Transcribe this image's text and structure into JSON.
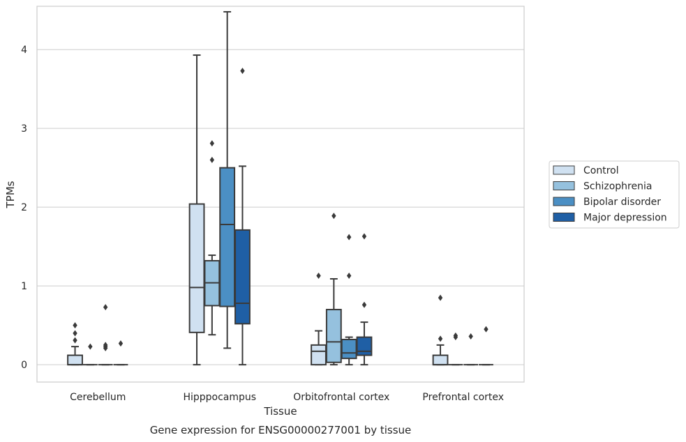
{
  "chart_data": {
    "type": "box",
    "xlabel": "Tissue",
    "ylabel": "TPMs",
    "caption": "Gene expression for ENSG00000277001 by tissue",
    "ylim": [
      -0.22,
      4.55
    ],
    "yticks": [
      0,
      1,
      2,
      3,
      4
    ],
    "grid": true,
    "legend_position": "right",
    "categories": [
      "Cerebellum",
      "Hipppocampus",
      "Orbitofrontal cortex",
      "Prefrontal cortex"
    ],
    "series": [
      {
        "name": "Control",
        "color": "#d0e1f1",
        "boxes": [
          {
            "whislo": 0,
            "q1": 0,
            "med": 0,
            "q3": 0.12,
            "whishi": 0.23,
            "fliers": [
              0.31,
              0.4,
              0.5
            ]
          },
          {
            "whislo": 0,
            "q1": 0.41,
            "med": 0.98,
            "q3": 2.04,
            "whishi": 3.93,
            "fliers": []
          },
          {
            "whislo": 0,
            "q1": 0,
            "med": 0.17,
            "q3": 0.25,
            "whishi": 0.43,
            "fliers": [
              1.13
            ]
          },
          {
            "whislo": 0,
            "q1": 0,
            "med": 0,
            "q3": 0.12,
            "whishi": 0.25,
            "fliers": [
              0.33,
              0.85
            ]
          }
        ]
      },
      {
        "name": "Schizophrenia",
        "color": "#95c1de",
        "boxes": [
          {
            "whislo": 0,
            "q1": 0,
            "med": 0,
            "q3": 0,
            "whishi": 0,
            "fliers": [
              0.23
            ]
          },
          {
            "whislo": 0.38,
            "q1": 0.75,
            "med": 1.04,
            "q3": 1.32,
            "whishi": 1.39,
            "fliers": [
              2.6,
              2.81
            ]
          },
          {
            "whislo": 0,
            "q1": 0.03,
            "med": 0.29,
            "q3": 0.7,
            "whishi": 1.09,
            "fliers": [
              1.89
            ]
          },
          {
            "whislo": 0,
            "q1": 0,
            "med": 0,
            "q3": 0,
            "whishi": 0,
            "fliers": [
              0.35,
              0.37
            ]
          }
        ]
      },
      {
        "name": "Bipolar disorder",
        "color": "#4b8fc4",
        "boxes": [
          {
            "whislo": 0,
            "q1": 0,
            "med": 0,
            "q3": 0,
            "whishi": 0,
            "fliers": [
              0.21,
              0.23,
              0.25,
              0.73
            ]
          },
          {
            "whislo": 0.21,
            "q1": 0.74,
            "med": 1.78,
            "q3": 2.5,
            "whishi": 4.48,
            "fliers": []
          },
          {
            "whislo": 0,
            "q1": 0.08,
            "med": 0.15,
            "q3": 0.32,
            "whishi": 0.35,
            "fliers": [
              1.13,
              1.62
            ]
          },
          {
            "whislo": 0,
            "q1": 0,
            "med": 0,
            "q3": 0,
            "whishi": 0,
            "fliers": [
              0.36
            ]
          }
        ]
      },
      {
        "name": "Major depression",
        "color": "#1f5fa5",
        "boxes": [
          {
            "whislo": 0,
            "q1": 0,
            "med": 0,
            "q3": 0,
            "whishi": 0,
            "fliers": [
              0.27
            ]
          },
          {
            "whislo": 0,
            "q1": 0.52,
            "med": 0.78,
            "q3": 1.71,
            "whishi": 2.52,
            "fliers": [
              3.73
            ]
          },
          {
            "whislo": 0,
            "q1": 0.12,
            "med": 0.17,
            "q3": 0.35,
            "whishi": 0.54,
            "fliers": [
              0.76,
              1.63
            ]
          },
          {
            "whislo": 0,
            "q1": 0,
            "med": 0,
            "q3": 0,
            "whishi": 0,
            "fliers": [
              0.45
            ]
          }
        ]
      }
    ],
    "styles": {
      "axis_color": "#cccccc",
      "grid_color": "#cccccc",
      "line_color": "#3a3a3a",
      "text_color": "#262626"
    }
  }
}
